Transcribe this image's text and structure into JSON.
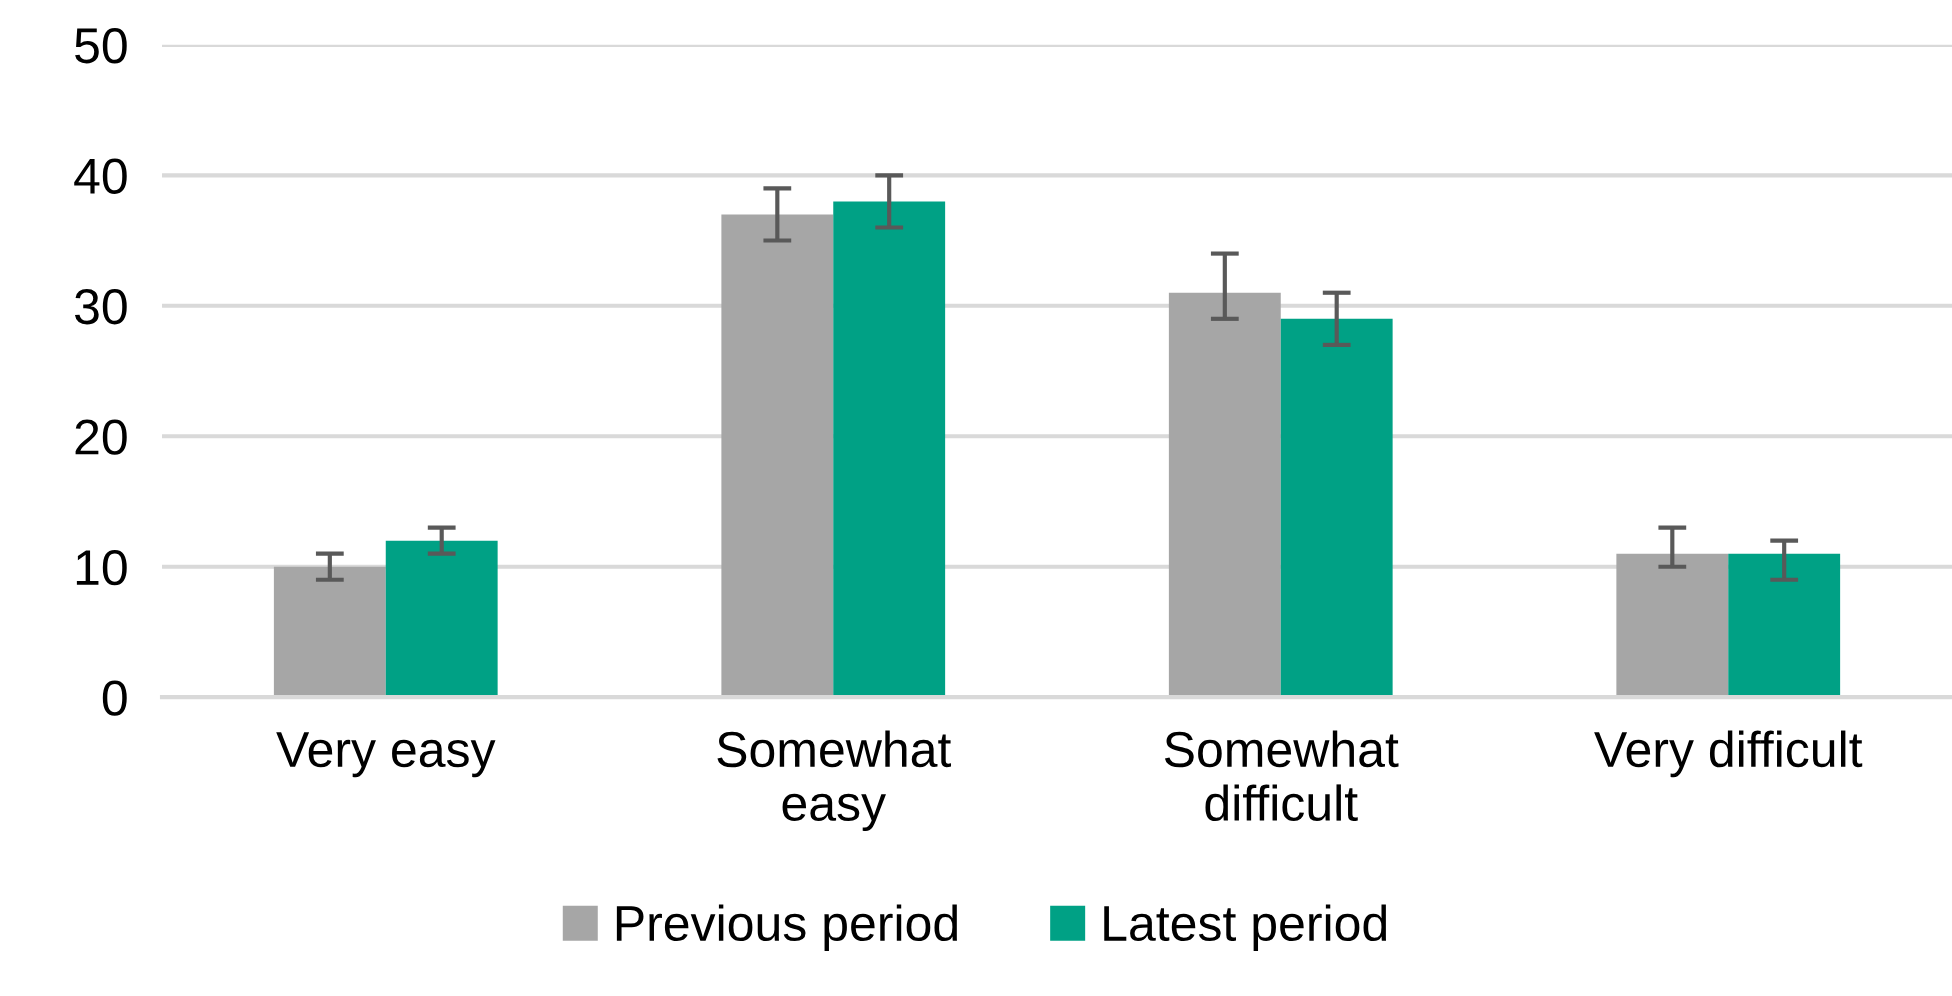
{
  "chart_data": {
    "type": "bar",
    "categories": [
      "Very easy",
      "Somewhat\neasy",
      "Somewhat\ndifficult",
      "Very difficult"
    ],
    "series": [
      {
        "name": "Previous period",
        "color": "#a6a6a6",
        "values": [
          10,
          37,
          31,
          11
        ],
        "errors": [
          [
            9,
            11
          ],
          [
            35,
            39
          ],
          [
            29,
            34
          ],
          [
            10,
            13
          ]
        ]
      },
      {
        "name": "Latest period",
        "color": "#00a185",
        "values": [
          12,
          38,
          29,
          11
        ],
        "errors": [
          [
            11,
            13
          ],
          [
            36,
            40
          ],
          [
            27,
            31
          ],
          [
            9,
            12
          ]
        ]
      }
    ],
    "ylim": [
      0,
      50
    ],
    "yticks": [
      0,
      10,
      20,
      30,
      40,
      50
    ],
    "grid": "y",
    "legend": "bottom"
  }
}
